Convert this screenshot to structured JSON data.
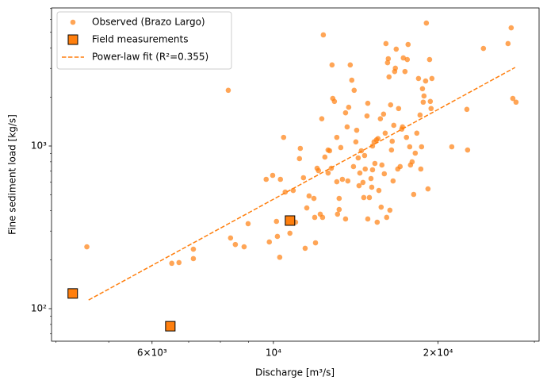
{
  "chart_data": {
    "type": "scatter",
    "x_label": "Discharge [m³/s]",
    "y_label": "Fine sediment load [kg/s]",
    "xscale": "log",
    "yscale": "log",
    "xlim": [
      3930,
      30600
    ],
    "ylim": [
      63.1,
      7060
    ],
    "xticks": [
      {
        "value": 6000,
        "label": "6×10³"
      },
      {
        "value": 10000,
        "label": "10⁴"
      },
      {
        "value": 20000,
        "label": "2×10⁴"
      }
    ],
    "xminorticks": [
      4000,
      5000,
      7000,
      8000,
      9000,
      30000
    ],
    "yticks": [
      {
        "value": 100,
        "label": "10²"
      },
      {
        "value": 1000,
        "label": "10³"
      }
    ],
    "yminorticks": [
      70,
      80,
      90,
      200,
      300,
      400,
      500,
      600,
      700,
      800,
      900,
      2000,
      3000,
      4000,
      5000,
      6000,
      7000
    ],
    "legend": "upper left",
    "series": [
      {
        "name": "Observed (Brazo Largo)",
        "color": "#ff7f0e",
        "style": "points",
        "x": [
          4560,
          6520,
          6720,
          7140,
          7140,
          8270,
          8350,
          8520,
          8990,
          8840,
          9700,
          9970,
          9830,
          10170,
          10270,
          10300,
          10440,
          10510,
          10130,
          10720,
          10870,
          10980,
          11160,
          11200,
          11350,
          11430,
          11510,
          11620,
          11900,
          11860,
          11940,
          12020,
          12090,
          12180,
          12260,
          12300,
          12340,
          12420,
          12590,
          12590,
          12670,
          12760,
          12800,
          12840,
          12930,
          13060,
          13100,
          13060,
          13190,
          13190,
          13280,
          13370,
          13550,
          13550,
          13640,
          13680,
          13730,
          13820,
          13910,
          14010,
          14050,
          14150,
          14200,
          14290,
          14340,
          14390,
          14480,
          14580,
          14630,
          14680,
          14720,
          14830,
          14880,
          14880,
          14980,
          15080,
          15130,
          15180,
          15180,
          15280,
          15330,
          15430,
          15480,
          15530,
          15590,
          15690,
          15740,
          15790,
          15900,
          15950,
          16010,
          16060,
          16110,
          16170,
          16220,
          16270,
          16330,
          16380,
          16440,
          16490,
          16550,
          16600,
          16660,
          16710,
          16770,
          16880,
          16940,
          17050,
          17170,
          17220,
          17280,
          17400,
          17510,
          17570,
          17630,
          17750,
          17810,
          17930,
          18050,
          18170,
          18290,
          18420,
          18540,
          18600,
          18660,
          18730,
          18790,
          18850,
          18980,
          19040,
          19170,
          19300,
          19360,
          19420,
          19490,
          21190,
          22580,
          22650,
          24210,
          26850,
          27210,
          27400,
          27770
        ],
        "values": [
          240,
          190,
          192,
          232,
          203,
          2200,
          272,
          248,
          333,
          240,
          624,
          660,
          257,
          278,
          207,
          624,
          1130,
          521,
          344,
          291,
          533,
          340,
          836,
          967,
          638,
          235,
          416,
          493,
          364,
          476,
          254,
          730,
          706,
          381,
          1470,
          364,
          4820,
          855,
          945,
          682,
          935,
          730,
          3150,
          1960,
          1880,
          1130,
          381,
          603,
          407,
          476,
          978,
          624,
          356,
          1600,
          1310,
          610,
          1730,
          3150,
          2540,
          747,
          2200,
          1060,
          1250,
          845,
          570,
          682,
          935,
          597,
          482,
          874,
          722,
          1530,
          1830,
          356,
          482,
          631,
          558,
          1000,
          714,
          1060,
          781,
          1090,
          340,
          1110,
          533,
          1470,
          421,
          764,
          1570,
          675,
          1200,
          4260,
          364,
          3250,
          3440,
          2660,
          403,
          1790,
          945,
          1070,
          610,
          1340,
          2870,
          3010,
          3940,
          722,
          1700,
          747,
          1270,
          1310,
          3480,
          2870,
          1130,
          3400,
          4210,
          989,
          764,
          799,
          504,
          904,
          1200,
          2600,
          1550,
          722,
          989,
          2250,
          1860,
          2030,
          2510,
          5700,
          545,
          3400,
          1880,
          1700,
          2600,
          989,
          1680,
          945,
          3980,
          4260,
          5330,
          1960,
          1860
        ]
      },
      {
        "name": "Field measurements",
        "color": "#ff7f0e",
        "style": "squares",
        "x": [
          4297,
          6480,
          10725
        ],
        "values": [
          124,
          78,
          348
        ]
      },
      {
        "name": "Power-law fit (R²=0.355)",
        "color": "#ff7f0e",
        "style": "dashed-line",
        "x": [
          4594,
          27670
        ],
        "values": [
          113,
          3041
        ]
      }
    ]
  }
}
